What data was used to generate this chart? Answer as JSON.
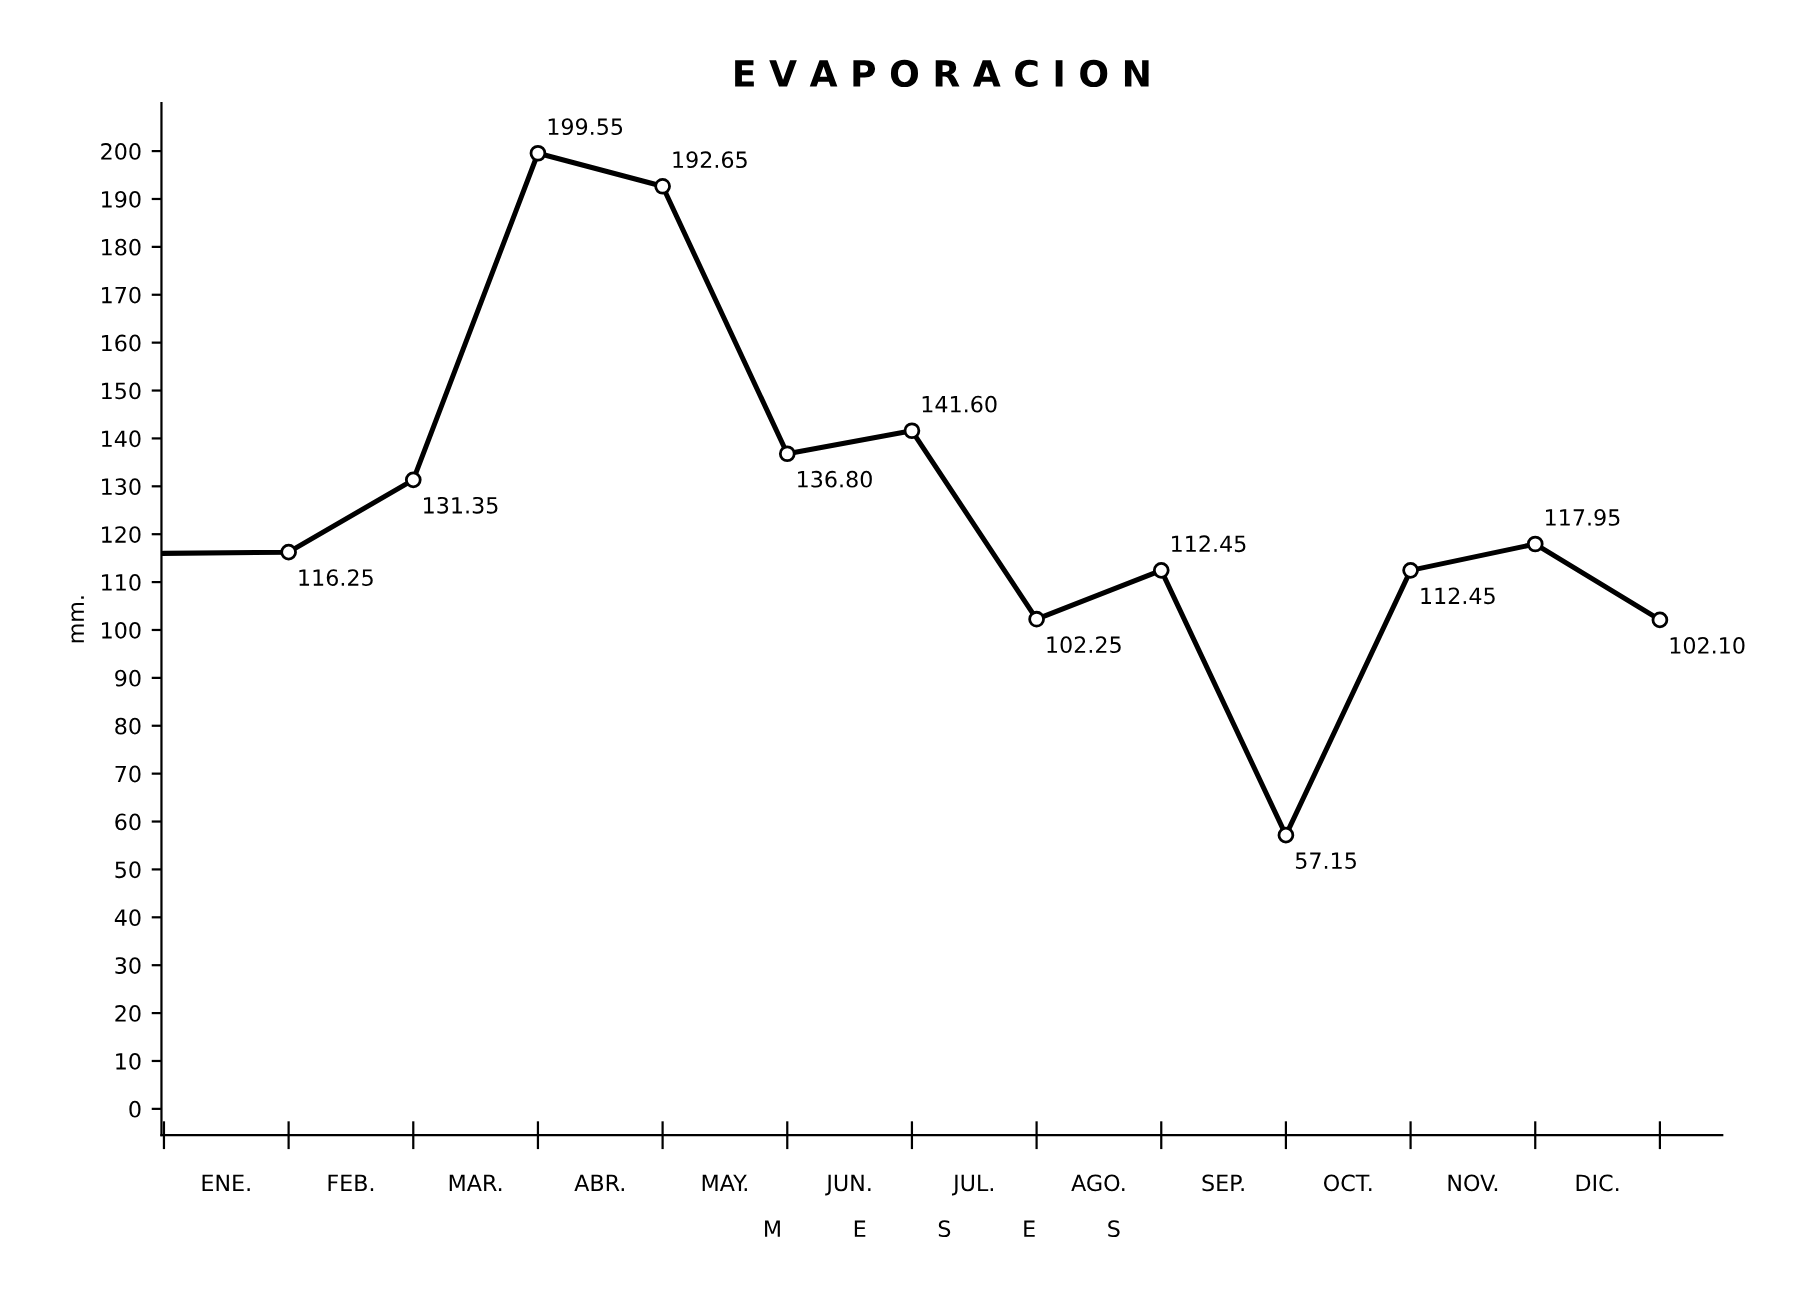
{
  "chart_data": {
    "type": "line",
    "title": "E V A P O R A C I O N",
    "xlabel": "M          E          S          E          S",
    "ylabel": "mm.",
    "categories": [
      null,
      null,
      null,
      null,
      null,
      null,
      null,
      null,
      null,
      null,
      null,
      null,
      null
    ],
    "annotations": [
      "ENE.",
      "FEB.",
      "MAR.",
      "ABR.",
      "MAY.",
      "JUN.",
      "JUL.",
      "AGO.",
      "SEP.",
      "OCT.",
      "NOV.",
      "DIC."
    ],
    "series": [
      {
        "color": "#000000",
        "values": [
          116,
          116.25,
          131.35,
          199.55,
          192.65,
          136.8,
          141.6,
          102.25,
          112.45,
          57.15,
          112.45,
          117.95,
          102.1
        ],
        "value_labels": [
          null,
          "116.25",
          "131.35",
          "199.55",
          "192.65",
          "136.80",
          "141.60",
          "102.25",
          "112.45",
          "57.15",
          "112.45",
          "117.95",
          "102.10"
        ]
      }
    ],
    "ylim": [
      -5.5,
      210
    ],
    "yticks": [
      0,
      10,
      20,
      30,
      40,
      50,
      60,
      70,
      80,
      90,
      100,
      110,
      120,
      130,
      140,
      150,
      160,
      170,
      180,
      190,
      200
    ],
    "marker": "circle",
    "line_style": "solid"
  }
}
